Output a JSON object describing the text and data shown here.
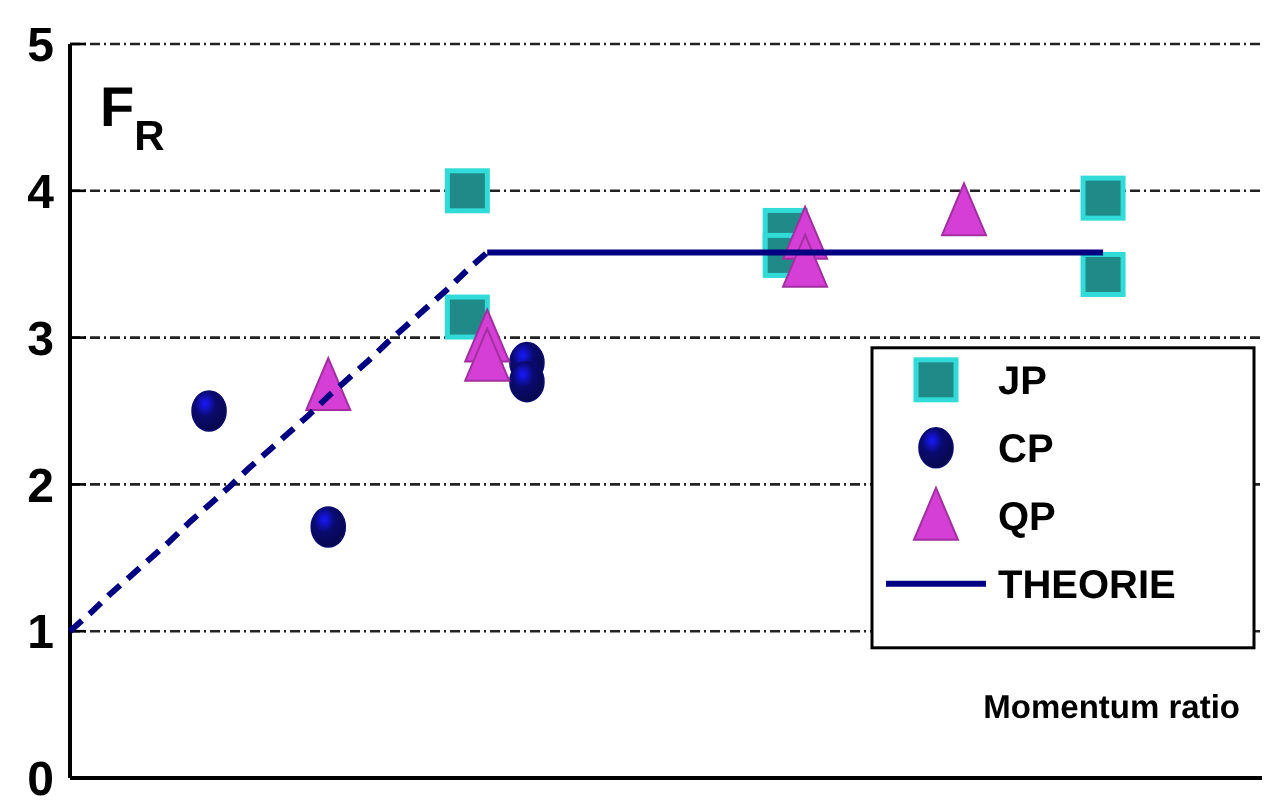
{
  "chart_data": {
    "type": "scatter",
    "xlabel": "Momentum ratio",
    "ylabel": "F$_{R}$",
    "categories": [
      null,
      null,
      null,
      null,
      null,
      null,
      null,
      null,
      null,
      null,
      null,
      null,
      null,
      null,
      null,
      null,
      null,
      null,
      null,
      null,
      null,
      null,
      null,
      null,
      null,
      null,
      null,
      null,
      null,
      null,
      null,
      null,
      null,
      null,
      null,
      null,
      null,
      null,
      null,
      null,
      null,
      null,
      null,
      null,
      null,
      null,
      null,
      null,
      null,
      null,
      null,
      null,
      null,
      null,
      null,
      null,
      null,
      null,
      null,
      null,
      null
    ],
    "ylim": [
      0,
      5
    ],
    "yticks": [
      0,
      1,
      2,
      3,
      4,
      5
    ],
    "tick_labels": "y",
    "grid": "y",
    "legend": "right",
    "series": [
      {
        "name": "JP",
        "marker": "square",
        "color": "#1f8a87",
        "values": [
          null,
          null,
          null,
          null,
          null,
          null,
          null,
          null,
          null,
          null,
          null,
          null,
          null,
          null,
          null,
          null,
          null,
          null,
          null,
          null,
          4.0,
          null,
          null,
          null,
          null,
          null,
          null,
          null,
          null,
          null,
          null,
          null,
          null,
          null,
          null,
          null,
          3.73,
          null,
          null,
          null,
          null,
          null,
          null,
          null,
          null,
          null,
          null,
          null,
          null,
          null,
          null,
          null,
          3.95,
          null,
          null,
          null,
          null,
          null,
          null,
          null,
          null
        ]
      },
      {
        "marker": "square",
        "color": "#1f8a87",
        "values": [
          null,
          null,
          null,
          null,
          null,
          null,
          null,
          null,
          null,
          null,
          null,
          null,
          null,
          null,
          null,
          null,
          null,
          null,
          null,
          null,
          3.14,
          null,
          null,
          null,
          null,
          null,
          null,
          null,
          null,
          null,
          null,
          null,
          null,
          null,
          null,
          null,
          3.56,
          null,
          null,
          null,
          null,
          null,
          null,
          null,
          null,
          null,
          null,
          null,
          null,
          null,
          null,
          null,
          3.43,
          null,
          null,
          null,
          null,
          null,
          null,
          null,
          null
        ]
      },
      {
        "name": "CP",
        "marker": "circle",
        "color": "#0a0a6e",
        "values": [
          null,
          null,
          null,
          null,
          null,
          null,
          null,
          2.5,
          null,
          null,
          null,
          null,
          null,
          1.71,
          null,
          null,
          null,
          null,
          null,
          null,
          null,
          null,
          null,
          2.83,
          null,
          null,
          null,
          null,
          null,
          null,
          null,
          null,
          null,
          null,
          null,
          null,
          null,
          null,
          null,
          null,
          null,
          null,
          null,
          null,
          null,
          null,
          null,
          null,
          null,
          null,
          null,
          null,
          null,
          null,
          null,
          null,
          null,
          null,
          null,
          null,
          null
        ]
      },
      {
        "marker": "circle",
        "color": "#0a0a6e",
        "values": [
          null,
          null,
          null,
          null,
          null,
          null,
          null,
          null,
          null,
          null,
          null,
          null,
          null,
          null,
          null,
          null,
          null,
          null,
          null,
          null,
          null,
          null,
          null,
          2.7,
          null,
          null,
          null,
          null,
          null,
          null,
          null,
          null,
          null,
          null,
          null,
          null,
          null,
          null,
          null,
          null,
          null,
          null,
          null,
          null,
          null,
          null,
          null,
          null,
          null,
          null,
          null,
          null,
          null,
          null,
          null,
          null,
          null,
          null,
          null,
          null,
          null
        ]
      },
      {
        "name": "QP",
        "marker": "triangle",
        "color": "#d63fd6",
        "values": [
          null,
          null,
          null,
          null,
          null,
          null,
          null,
          null,
          null,
          null,
          null,
          null,
          null,
          2.67,
          null,
          null,
          null,
          null,
          null,
          null,
          null,
          3.0,
          null,
          null,
          null,
          null,
          null,
          null,
          null,
          null,
          null,
          null,
          null,
          null,
          null,
          null,
          null,
          3.7,
          null,
          null,
          null,
          null,
          null,
          null,
          null,
          3.86,
          null,
          null,
          null,
          null,
          null,
          null,
          null,
          null,
          null,
          null,
          null,
          null,
          null,
          null,
          null
        ]
      },
      {
        "marker": "triangle",
        "color": "#d63fd6",
        "values": [
          null,
          null,
          null,
          null,
          null,
          null,
          null,
          null,
          null,
          null,
          null,
          null,
          null,
          null,
          null,
          null,
          null,
          null,
          null,
          null,
          null,
          2.87,
          null,
          null,
          null,
          null,
          null,
          null,
          null,
          null,
          null,
          null,
          null,
          null,
          null,
          null,
          null,
          3.51,
          null,
          null,
          null,
          null,
          null,
          null,
          null,
          null,
          null,
          null,
          null,
          null,
          null,
          null,
          null,
          null,
          null,
          null,
          null,
          null,
          null,
          null,
          null
        ]
      },
      {
        "name": "THEORIE",
        "type": "line",
        "marker": "none",
        "line_style": "solid",
        "color": "#000080",
        "values": [
          null,
          null,
          null,
          null,
          null,
          null,
          null,
          null,
          null,
          null,
          null,
          null,
          null,
          null,
          null,
          null,
          null,
          null,
          null,
          null,
          null,
          3.58,
          3.58,
          3.58,
          3.58,
          3.58,
          3.58,
          3.58,
          3.58,
          3.58,
          3.58,
          3.58,
          3.58,
          3.58,
          3.58,
          3.58,
          3.58,
          3.58,
          3.58,
          3.58,
          3.58,
          3.58,
          3.58,
          3.58,
          3.58,
          3.58,
          3.58,
          3.58,
          3.58,
          3.58,
          3.58,
          3.58,
          3.58,
          null,
          null,
          null,
          null,
          null,
          null,
          null,
          null
        ]
      },
      {
        "type": "line",
        "marker": "none",
        "line_style": "dashed",
        "color": "#000080",
        "values": [
          1.0,
          1.12,
          1.25,
          1.37,
          1.49,
          1.61,
          1.74,
          1.86,
          1.98,
          2.11,
          2.23,
          2.35,
          2.47,
          2.6,
          2.72,
          2.84,
          2.97,
          3.09,
          3.21,
          3.33,
          3.46,
          3.58,
          null,
          null,
          null,
          null,
          null,
          null,
          null,
          null,
          null,
          null,
          null,
          null,
          null,
          null,
          null,
          null,
          null,
          null,
          null,
          null,
          null,
          null,
          null,
          null,
          null,
          null,
          null,
          null,
          null,
          null,
          null,
          null,
          null,
          null,
          null,
          null,
          null,
          null,
          null
        ]
      }
    ]
  }
}
